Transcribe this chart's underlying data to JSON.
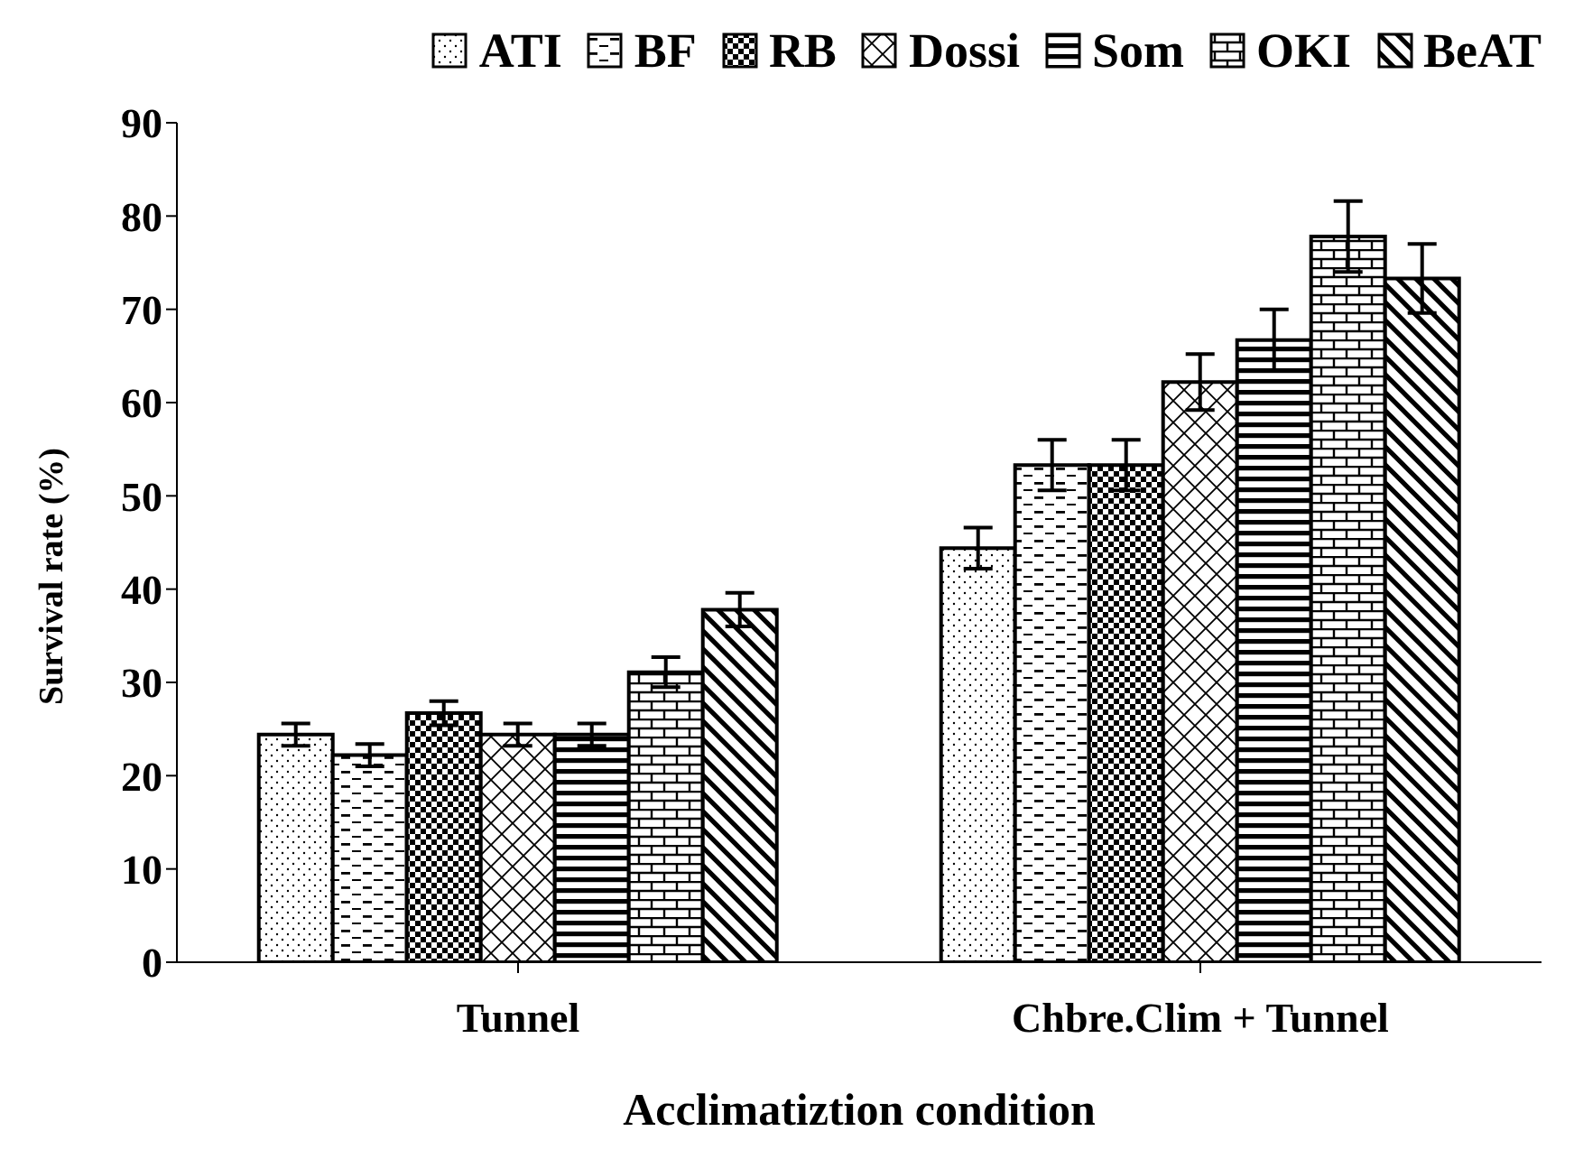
{
  "chart_data": {
    "type": "bar",
    "xlabel": "Acclimatiztion condition",
    "ylabel": "Survival  rate (%)",
    "categories": [
      "Tunnel",
      "Chbre.Clim + Tunnel"
    ],
    "series": [
      {
        "name": "ATI",
        "color": "#000000",
        "values": [
          24.4,
          44.4
        ],
        "errors": [
          1.2,
          2.2
        ]
      },
      {
        "name": "BF",
        "color": "#000000",
        "values": [
          22.2,
          53.3
        ],
        "errors": [
          1.2,
          2.7
        ]
      },
      {
        "name": "RB",
        "color": "#000000",
        "values": [
          26.7,
          53.3
        ],
        "errors": [
          1.3,
          2.7
        ]
      },
      {
        "name": "Dossi",
        "color": "#000000",
        "values": [
          24.4,
          62.2
        ],
        "errors": [
          1.2,
          3.0
        ]
      },
      {
        "name": "Som",
        "color": "#000000",
        "values": [
          24.4,
          66.7
        ],
        "errors": [
          1.2,
          3.3
        ]
      },
      {
        "name": "OKI",
        "color": "#000000",
        "values": [
          31.1,
          77.8
        ],
        "errors": [
          1.6,
          3.8
        ]
      },
      {
        "name": "BeAT",
        "color": "#000000",
        "values": [
          37.8,
          73.3
        ],
        "errors": [
          1.8,
          3.7
        ]
      }
    ],
    "ylim": [
      0,
      90
    ],
    "yticks": [
      0,
      10,
      20,
      30,
      40,
      50,
      60,
      70,
      80,
      90
    ],
    "legend": "top"
  }
}
